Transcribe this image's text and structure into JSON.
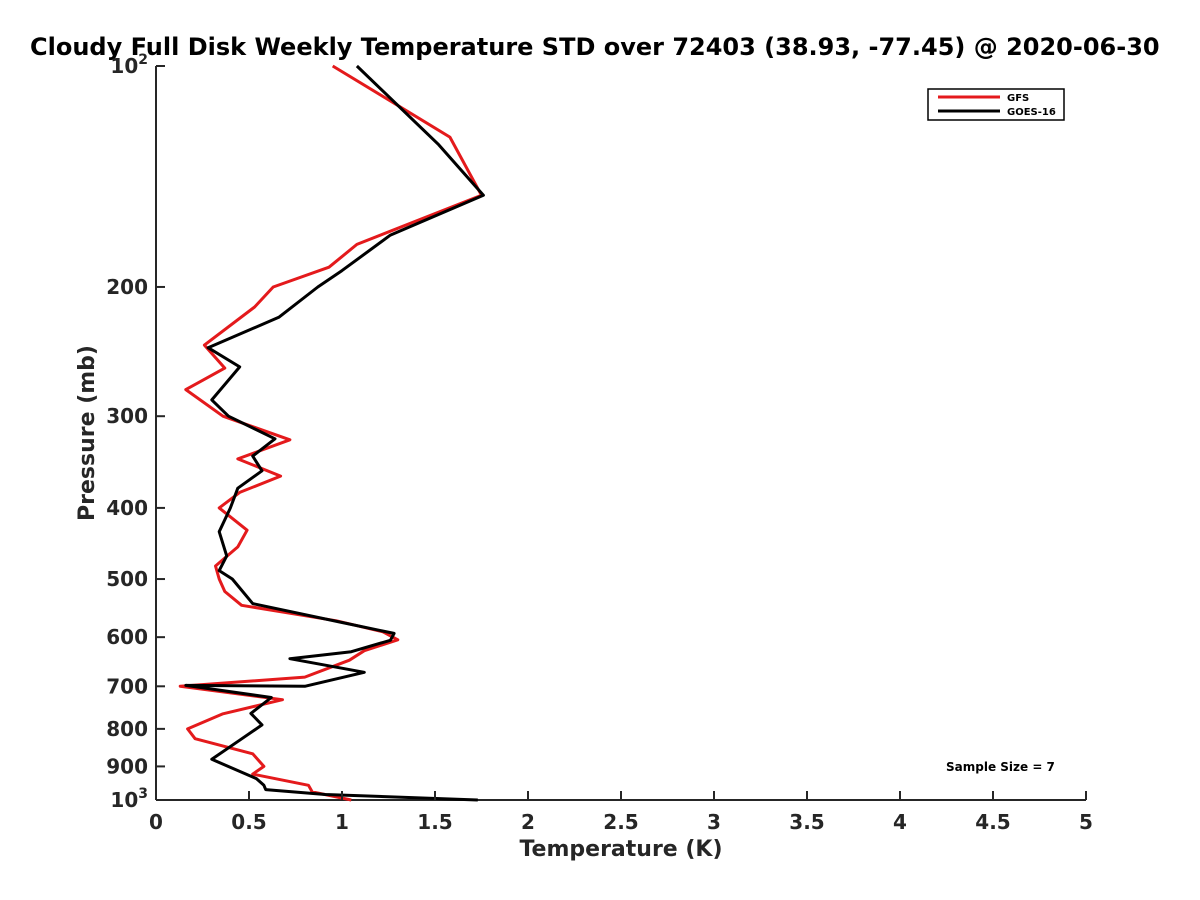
{
  "chart_data": {
    "type": "line",
    "title": "Cloudy Full Disk Weekly Temperature STD over 72403 (38.93, -77.45) @ 2020-06-30",
    "xlabel": "Temperature (K)",
    "ylabel": "Pressure (mb)",
    "xlim": [
      0,
      5
    ],
    "ylim": [
      100,
      1000
    ],
    "yscale": "log",
    "yreversed": true,
    "grid": false,
    "legend_position": "top-right",
    "x_ticks": [
      0,
      0.5,
      1,
      1.5,
      2,
      2.5,
      3,
      3.5,
      4,
      4.5,
      5
    ],
    "x_tick_labels": [
      "0",
      "0.5",
      "1",
      "1.5",
      "2",
      "2.5",
      "3",
      "3.5",
      "4",
      "4.5",
      "5"
    ],
    "y_ticks": [
      100,
      200,
      300,
      400,
      500,
      600,
      700,
      800,
      900,
      1000
    ],
    "y_tick_labels": [
      {
        "base": "10",
        "exp": "2"
      },
      {
        "text": "200"
      },
      {
        "text": "300"
      },
      {
        "text": "400"
      },
      {
        "text": "500"
      },
      {
        "text": "600"
      },
      {
        "text": "700"
      },
      {
        "text": "800"
      },
      {
        "text": "900"
      },
      {
        "base": "10",
        "exp": "3"
      }
    ],
    "annotation": "Sample Size = 7",
    "series": [
      {
        "name": "GFS",
        "color": "#e41a1c",
        "points": [
          [
            0.95,
            100
          ],
          [
            1.58,
            125
          ],
          [
            1.75,
            150
          ],
          [
            1.08,
            175
          ],
          [
            0.93,
            188
          ],
          [
            0.63,
            200
          ],
          [
            0.53,
            213
          ],
          [
            0.26,
            240
          ],
          [
            0.37,
            258
          ],
          [
            0.16,
            276
          ],
          [
            0.36,
            300
          ],
          [
            0.72,
            323
          ],
          [
            0.44,
            343
          ],
          [
            0.67,
            362
          ],
          [
            0.45,
            381
          ],
          [
            0.34,
            400
          ],
          [
            0.49,
            429
          ],
          [
            0.44,
            452
          ],
          [
            0.32,
            480
          ],
          [
            0.34,
            500
          ],
          [
            0.37,
            520
          ],
          [
            0.46,
            543
          ],
          [
            0.97,
            570
          ],
          [
            1.22,
            590
          ],
          [
            1.3,
            605
          ],
          [
            1.12,
            626
          ],
          [
            1.04,
            645
          ],
          [
            0.8,
            680
          ],
          [
            0.13,
            700
          ],
          [
            0.68,
            730
          ],
          [
            0.36,
            763
          ],
          [
            0.17,
            800
          ],
          [
            0.21,
            825
          ],
          [
            0.52,
            865
          ],
          [
            0.58,
            900
          ],
          [
            0.52,
            922
          ],
          [
            0.82,
            955
          ],
          [
            0.84,
            975
          ],
          [
            1.05,
            1000
          ]
        ]
      },
      {
        "name": "GOES-16",
        "color": "#000000",
        "points": [
          [
            1.08,
            100
          ],
          [
            1.52,
            128
          ],
          [
            1.76,
            150
          ],
          [
            1.26,
            170
          ],
          [
            1.0,
            190
          ],
          [
            0.87,
            200
          ],
          [
            0.66,
            220
          ],
          [
            0.28,
            242
          ],
          [
            0.45,
            257
          ],
          [
            0.3,
            285
          ],
          [
            0.39,
            300
          ],
          [
            0.64,
            322
          ],
          [
            0.52,
            340
          ],
          [
            0.57,
            356
          ],
          [
            0.44,
            376
          ],
          [
            0.4,
            400
          ],
          [
            0.34,
            431
          ],
          [
            0.38,
            465
          ],
          [
            0.34,
            487
          ],
          [
            0.41,
            500
          ],
          [
            0.52,
            540
          ],
          [
            1.0,
            573
          ],
          [
            1.28,
            593
          ],
          [
            1.26,
            606
          ],
          [
            1.05,
            628
          ],
          [
            0.72,
            642
          ],
          [
            1.12,
            670
          ],
          [
            0.8,
            700
          ],
          [
            0.16,
            698
          ],
          [
            0.62,
            725
          ],
          [
            0.51,
            762
          ],
          [
            0.57,
            790
          ],
          [
            0.45,
            829
          ],
          [
            0.3,
            880
          ],
          [
            0.54,
            935
          ],
          [
            0.58,
            955
          ],
          [
            0.59,
            968
          ],
          [
            0.91,
            983
          ],
          [
            1.73,
            1000
          ]
        ]
      }
    ]
  }
}
